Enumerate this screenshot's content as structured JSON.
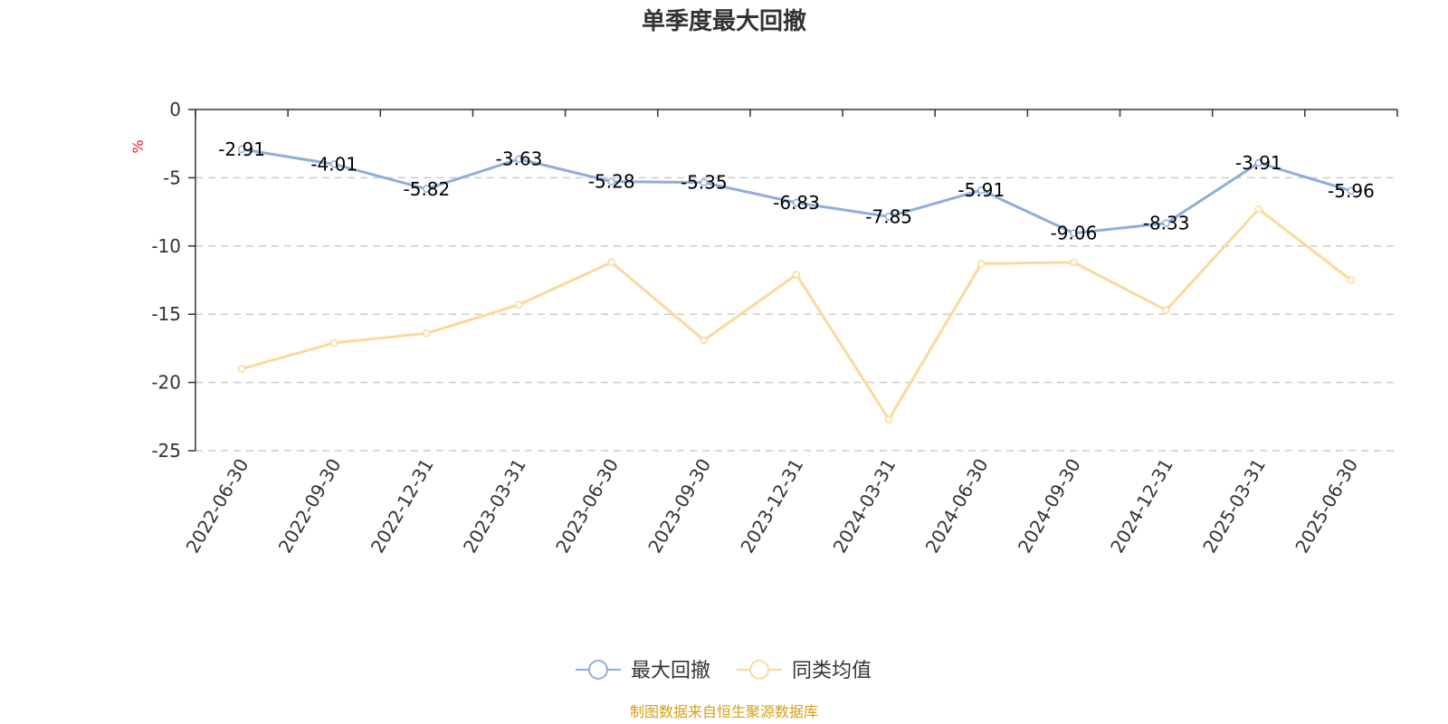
{
  "chart_data": {
    "type": "line",
    "title": "单季度最大回撤",
    "ylabel": "%",
    "ylim": [
      -25,
      0
    ],
    "yticks": [
      0,
      -5,
      -10,
      -15,
      -20,
      -25
    ],
    "grid": true,
    "legend_position": "bottom",
    "categories": [
      "2022-06-30",
      "2022-09-30",
      "2022-12-31",
      "2023-03-31",
      "2023-06-30",
      "2023-09-30",
      "2023-12-31",
      "2024-03-31",
      "2024-06-30",
      "2024-09-30",
      "2024-12-31",
      "2025-03-31",
      "2025-06-30"
    ],
    "series": [
      {
        "name": "最大回撤",
        "color": "#8eaedb",
        "values": [
          -2.91,
          -4.01,
          -5.82,
          -3.63,
          -5.28,
          -5.35,
          -6.83,
          -7.85,
          -5.91,
          -9.06,
          -8.33,
          -3.91,
          -5.96
        ],
        "data_labels": [
          "-2.91",
          "-4.01",
          "-5.82",
          "-3.63",
          "-5.28",
          "-5.35",
          "-6.83",
          "-7.85",
          "-5.91",
          "-9.06",
          "-8.33",
          "-3.91",
          "-5.96"
        ]
      },
      {
        "name": "同类均值",
        "color": "#fcd99a",
        "values": [
          -19.0,
          -17.1,
          -16.4,
          -14.3,
          -11.2,
          -16.9,
          -12.1,
          -22.7,
          -11.3,
          -11.2,
          -14.7,
          -7.3,
          -12.5
        ]
      }
    ],
    "source": "制图数据来自恒生聚源数据库"
  },
  "colors": {
    "unit_label": "#e8161f",
    "source_text": "#d4a017",
    "grid": "#cccccc",
    "axis": "#333333"
  }
}
